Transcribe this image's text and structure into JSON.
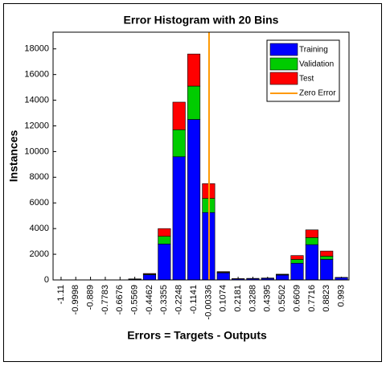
{
  "chart_data": {
    "type": "stacked_histogram",
    "title": "Error Histogram with 20 Bins",
    "x_label": "Errors = Targets - Outputs",
    "y_label": "Instances",
    "x": [
      -1.11,
      -0.9998,
      -0.889,
      -0.7783,
      -0.6676,
      -0.5569,
      -0.4462,
      -0.3355,
      -0.2248,
      -0.1141,
      -0.00336,
      0.1074,
      0.2181,
      0.3288,
      0.4395,
      0.5502,
      0.6609,
      0.7716,
      0.8823,
      0.993
    ],
    "series": [
      {
        "name": "Training",
        "color": "#0000ff",
        "values": [
          0,
          0,
          0,
          0,
          0,
          60,
          400,
          2800,
          9600,
          12500,
          5250,
          550,
          80,
          100,
          120,
          380,
          1300,
          2750,
          1600,
          180
        ]
      },
      {
        "name": "Validation",
        "color": "#00cc00",
        "values": [
          0,
          0,
          0,
          0,
          0,
          10,
          50,
          600,
          2100,
          2600,
          1100,
          50,
          10,
          10,
          15,
          40,
          300,
          550,
          250,
          10
        ]
      },
      {
        "name": "Test",
        "color": "#ff0000",
        "values": [
          0,
          0,
          0,
          0,
          0,
          10,
          50,
          600,
          2150,
          2500,
          1150,
          50,
          10,
          10,
          15,
          30,
          300,
          600,
          400,
          10
        ]
      }
    ],
    "zero_error": {
      "name": "Zero Error",
      "color": "#ff9900",
      "x": 0
    },
    "xlim": [
      -1.17,
      1.05
    ],
    "xticks": [
      -1.11,
      -0.9998,
      -0.889,
      -0.7783,
      -0.6676,
      -0.5569,
      -0.4462,
      -0.3355,
      -0.2248,
      -0.1141,
      -0.00336,
      0.1074,
      0.2181,
      0.3288,
      0.4395,
      0.5502,
      0.6609,
      0.7716,
      0.8823,
      0.993
    ],
    "ylim": [
      0,
      19300
    ],
    "yticks": [
      0,
      2000,
      4000,
      6000,
      8000,
      10000,
      12000,
      14000,
      16000,
      18000
    ],
    "legend": "upper right",
    "grid": false
  }
}
